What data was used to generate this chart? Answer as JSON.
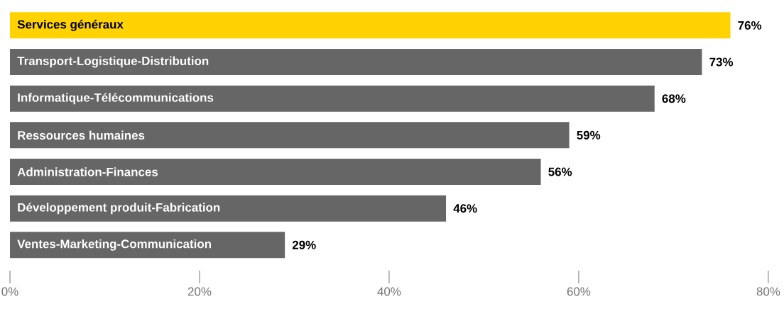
{
  "chart_data": {
    "type": "bar",
    "orientation": "horizontal",
    "categories": [
      "Services généraux",
      "Transport-Logistique-Distribution",
      "Informatique-Télécommunications",
      "Ressources humaines",
      "Administration-Finances",
      "Développement produit-Fabrication",
      "Ventes-Marketing-Communication"
    ],
    "values": [
      76,
      73,
      68,
      59,
      56,
      46,
      29
    ],
    "value_labels": [
      "76%",
      "73%",
      "68%",
      "59%",
      "56%",
      "46%",
      "29%"
    ],
    "colors": [
      "#ffd200",
      "#666666",
      "#666666",
      "#666666",
      "#666666",
      "#666666",
      "#666666"
    ],
    "xlim": [
      0,
      80
    ],
    "xticks": [
      {
        "value": 0,
        "label": "0%"
      },
      {
        "value": 20,
        "label": "20%"
      },
      {
        "value": 40,
        "label": "40%"
      },
      {
        "value": 60,
        "label": "60%"
      },
      {
        "value": 80,
        "label": "80%"
      }
    ]
  }
}
